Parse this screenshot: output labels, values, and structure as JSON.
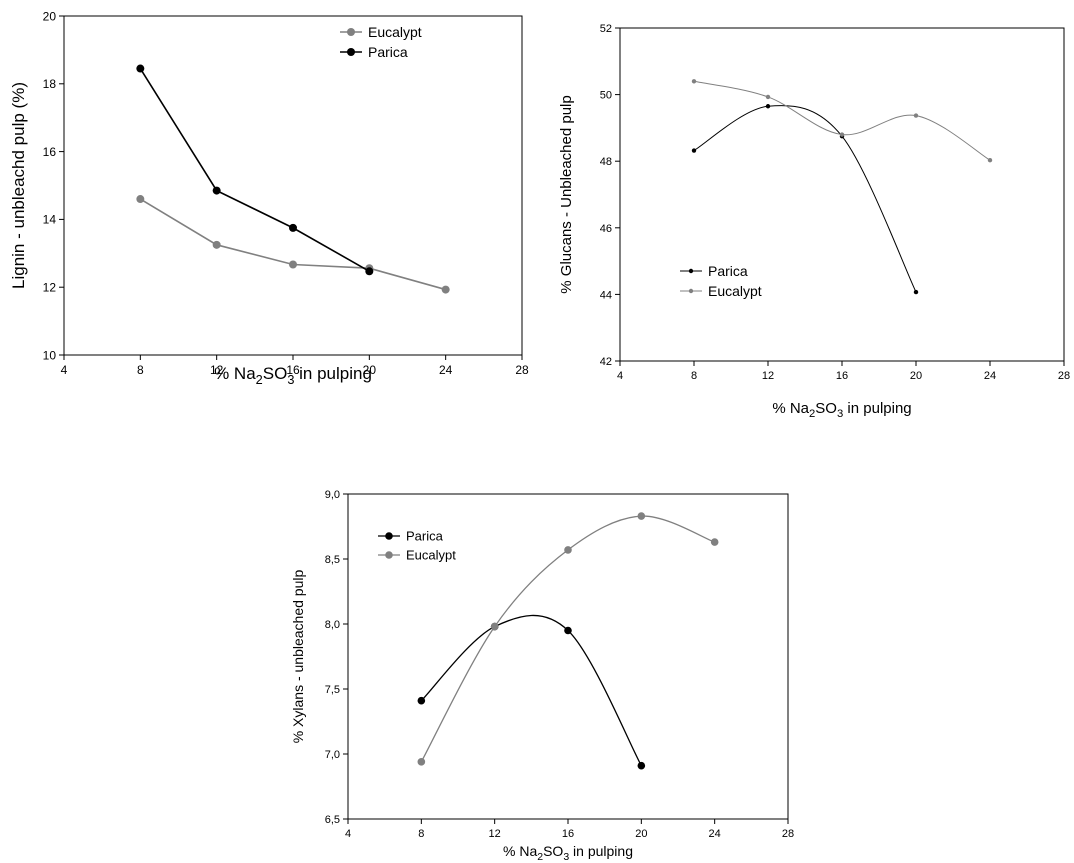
{
  "chart_data": [
    {
      "type": "line",
      "xlabel_prefix": "% Na",
      "xlabel_sub1": "2",
      "xlabel_mid": "SO",
      "xlabel_sub2": "3",
      "xlabel_suffix": " in pulping",
      "ylabel": "Lignin - unbleachd pulp (%)",
      "xlim": [
        4,
        28
      ],
      "ylim": [
        10,
        20
      ],
      "xticks": [
        "4",
        "8",
        "12",
        "16",
        "20",
        "24",
        "28"
      ],
      "yticks": [
        "10",
        "12",
        "14",
        "16",
        "18",
        "20"
      ],
      "legend_position": "top-right",
      "smooth": false,
      "series": [
        {
          "name": "Eucalypt",
          "color": "#808080",
          "x": [
            8,
            12,
            16,
            20,
            24
          ],
          "y": [
            14.6,
            13.25,
            12.67,
            12.56,
            11.93
          ]
        },
        {
          "name": "Parica",
          "color": "#000000",
          "x": [
            8,
            12,
            16,
            20
          ],
          "y": [
            18.45,
            14.85,
            13.75,
            12.47
          ]
        }
      ]
    },
    {
      "type": "line",
      "xlabel_prefix": "% Na",
      "xlabel_sub1": "2",
      "xlabel_mid": "SO",
      "xlabel_sub2": "3",
      "xlabel_suffix": " in pulping",
      "ylabel": "% Glucans - Unbleached pulp",
      "xlim": [
        4,
        28
      ],
      "ylim": [
        42,
        52
      ],
      "xticks": [
        "4",
        "8",
        "12",
        "16",
        "20",
        "24",
        "28"
      ],
      "yticks": [
        "42",
        "44",
        "46",
        "48",
        "50",
        "52"
      ],
      "legend_position": "bottom-left",
      "smooth": true,
      "series": [
        {
          "name": "Parica",
          "color": "#000000",
          "x": [
            8,
            12,
            16,
            20
          ],
          "y": [
            48.32,
            49.65,
            48.75,
            44.07
          ]
        },
        {
          "name": "Eucalypt",
          "color": "#808080",
          "x": [
            8,
            12,
            16,
            20,
            24
          ],
          "y": [
            50.4,
            49.93,
            48.8,
            49.37,
            48.03
          ]
        }
      ]
    },
    {
      "type": "line",
      "xlabel_prefix": "% Na",
      "xlabel_sub1": "2",
      "xlabel_mid": "SO",
      "xlabel_sub2": "3",
      "xlabel_suffix": " in pulping",
      "ylabel": "% Xylans - unbleached pulp",
      "xlim": [
        4,
        28
      ],
      "ylim": [
        6.5,
        9.0
      ],
      "xticks": [
        "4",
        "8",
        "12",
        "16",
        "20",
        "24",
        "28"
      ],
      "yticks": [
        "6,5",
        "7,0",
        "7,5",
        "8,0",
        "8,5",
        "9,0"
      ],
      "legend_position": "top-left",
      "smooth": true,
      "series": [
        {
          "name": "Parica",
          "color": "#000000",
          "x": [
            8,
            12,
            16,
            20
          ],
          "y": [
            7.41,
            7.98,
            7.95,
            6.91
          ]
        },
        {
          "name": "Eucalypt",
          "color": "#808080",
          "x": [
            8,
            12,
            16,
            20,
            24
          ],
          "y": [
            6.94,
            7.98,
            8.57,
            8.83,
            8.63
          ]
        }
      ]
    }
  ]
}
